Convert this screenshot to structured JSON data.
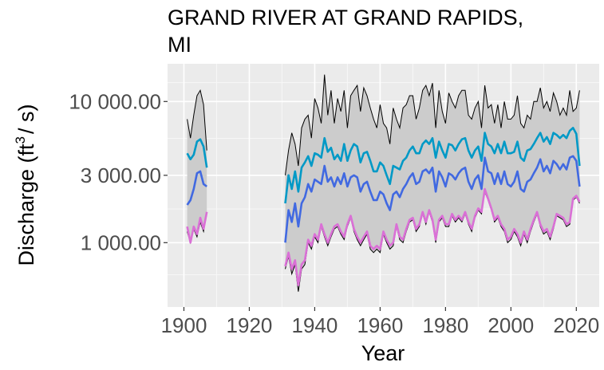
{
  "chart_data": {
    "type": "area",
    "title": "GRAND RIVER AT GRAND RAPIDS, MI",
    "title_lines": [
      "GRAND RIVER AT GRAND RAPIDS,",
      "MI"
    ],
    "xlabel": "Year",
    "ylabel": "Discharge (ft",
    "ylabel_sup": "3",
    "ylabel_tail": "/ s)",
    "x_scale": "linear",
    "y_scale": "log10",
    "xlim": [
      1895,
      2027
    ],
    "ylim": [
      350,
      18500
    ],
    "x_ticks": [
      1900,
      1920,
      1940,
      1960,
      1980,
      2000,
      2020
    ],
    "x_tick_labels": [
      "1900",
      "1920",
      "1940",
      "1960",
      "1980",
      "2000",
      "2020"
    ],
    "y_ticks": [
      1000,
      3000,
      10000
    ],
    "y_tick_labels": [
      "1 000.00",
      "3 000.00",
      "10 000.00"
    ],
    "grid": true,
    "colors": {
      "panel": "#ebebeb",
      "grid_major": "#ffffff",
      "grid_minor": "#f7f7f7",
      "ribbon_fill": "#cccccc",
      "ribbon_edge": "#000000",
      "series_upper": "#0099c6",
      "series_mid": "#4169e1",
      "series_lower": "#da70d6"
    },
    "series": [
      {
        "role": "ribbon",
        "segments": [
          {
            "x": [
              1901,
              1902,
              1903,
              1904,
              1905,
              1906,
              1907
            ],
            "low": [
              1200,
              1000,
              1250,
              1100,
              1400,
              1200,
              1600
            ],
            "high": [
              7500,
              5500,
              8000,
              11000,
              12000,
              9500,
              4500
            ]
          },
          {
            "x": [
              1931,
              1932,
              1933,
              1934,
              1935,
              1936,
              1937,
              1938,
              1939,
              1940,
              1941,
              1942,
              1943,
              1944,
              1945,
              1946,
              1947,
              1948,
              1949,
              1950,
              1951,
              1952,
              1953,
              1954,
              1955,
              1956,
              1957,
              1958,
              1959,
              1960,
              1961,
              1962,
              1963,
              1964,
              1965,
              1966,
              1967,
              1968,
              1969,
              1970,
              1971,
              1972,
              1973,
              1974,
              1975,
              1976,
              1977,
              1978,
              1979,
              1980,
              1981,
              1982,
              1983,
              1984,
              1985,
              1986,
              1987,
              1988,
              1989,
              1990,
              1991,
              1992,
              1993,
              1994,
              1995,
              1996,
              1997,
              1998,
              1999,
              2000,
              2001,
              2002,
              2003,
              2004,
              2005,
              2006,
              2007,
              2008,
              2009,
              2010,
              2011,
              2012,
              2013,
              2014,
              2015,
              2016,
              2017,
              2018,
              2019,
              2020,
              2021
            ],
            "low": [
              650,
              800,
              600,
              700,
              450,
              650,
              700,
              1000,
              900,
              1100,
              1000,
              1300,
              1100,
              950,
              1100,
              1250,
              1300,
              1150,
              1050,
              1300,
              1500,
              1200,
              1050,
              950,
              1050,
              1150,
              900,
              850,
              900,
              850,
              1150,
              1000,
              900,
              950,
              1300,
              1050,
              1000,
              1200,
              1400,
              1450,
              1200,
              1300,
              1600,
              1350,
              1650,
              1400,
              1000,
              1400,
              1500,
              1300,
              1300,
              1550,
              1400,
              1500,
              1400,
              1600,
              1350,
              1200,
              1500,
              1700,
              1600,
              2300,
              2000,
              1700,
              1400,
              1500,
              1300,
              1200,
              1000,
              1050,
              1200,
              1100,
              950,
              1150,
              1000,
              1200,
              1400,
              1600,
              1300,
              1150,
              1200,
              1050,
              1250,
              1550,
              1500,
              1450,
              1300,
              1350,
              2000,
              2100,
              1900
            ],
            "high": [
              3000,
              4500,
              6000,
              5000,
              3500,
              6500,
              7500,
              8000,
              5500,
              10500,
              9000,
              7000,
              15500,
              8000,
              12000,
              7000,
              10500,
              8500,
              12000,
              6500,
              11000,
              12000,
              13000,
              8500,
              12500,
              11000,
              9000,
              7500,
              6500,
              9500,
              7000,
              6500,
              5000,
              9000,
              7500,
              6500,
              9000,
              9500,
              11000,
              11000,
              7500,
              9000,
              12000,
              13000,
              11000,
              13500,
              6500,
              12000,
              8500,
              7000,
              11500,
              10000,
              9000,
              11000,
              12000,
              12000,
              8000,
              7500,
              9000,
              10000,
              6500,
              13000,
              9000,
              9500,
              7000,
              9500,
              6500,
              10000,
              7500,
              7500,
              8000,
              11000,
              7000,
              6500,
              8000,
              7500,
              10000,
              10000,
              12500,
              9000,
              10000,
              8500,
              11500,
              10000,
              8000,
              9000,
              8000,
              12000,
              8500,
              9000,
              12000
            ]
          }
        ]
      },
      {
        "role": "upper",
        "segments": [
          {
            "x": [
              1901,
              1902,
              1903,
              1904,
              1905,
              1906,
              1907
            ],
            "y": [
              4300,
              3900,
              4200,
              5200,
              5400,
              4800,
              3400
            ]
          },
          {
            "x": [
              1931,
              1932,
              1933,
              1934,
              1935,
              1936,
              1937,
              1938,
              1939,
              1940,
              1941,
              1942,
              1943,
              1944,
              1945,
              1946,
              1947,
              1948,
              1949,
              1950,
              1951,
              1952,
              1953,
              1954,
              1955,
              1956,
              1957,
              1958,
              1959,
              1960,
              1961,
              1962,
              1963,
              1964,
              1965,
              1966,
              1967,
              1968,
              1969,
              1970,
              1971,
              1972,
              1973,
              1974,
              1975,
              1976,
              1977,
              1978,
              1979,
              1980,
              1981,
              1982,
              1983,
              1984,
              1985,
              1986,
              1987,
              1988,
              1989,
              1990,
              1991,
              1992,
              1993,
              1994,
              1995,
              1996,
              1997,
              1998,
              1999,
              2000,
              2001,
              2002,
              2003,
              2004,
              2005,
              2006,
              2007,
              2008,
              2009,
              2010,
              2011,
              2012,
              2013,
              2014,
              2015,
              2016,
              2017,
              2018,
              2019,
              2020,
              2021
            ],
            "y": [
              1900,
              3000,
              2400,
              3200,
              2300,
              3400,
              3700,
              4100,
              3500,
              4300,
              4200,
              4000,
              5500,
              4400,
              4700,
              3900,
              4200,
              3800,
              5000,
              3800,
              4500,
              5000,
              4800,
              3700,
              4300,
              4400,
              3800,
              3200,
              3200,
              3700,
              3500,
              3000,
              2600,
              3500,
              3400,
              3300,
              3800,
              4000,
              4500,
              4800,
              4300,
              4300,
              5000,
              5300,
              5000,
              5500,
              4000,
              5200,
              4500,
              4000,
              5000,
              4900,
              4500,
              5000,
              5400,
              5500,
              4500,
              4000,
              4500,
              4800,
              3800,
              6000,
              5000,
              4800,
              4300,
              5000,
              4300,
              5200,
              4300,
              4300,
              4400,
              5200,
              4000,
              3800,
              4500,
              4600,
              5000,
              5500,
              6000,
              5200,
              5600,
              5000,
              6000,
              5800,
              5500,
              5800,
              5500,
              6200,
              6500,
              5900,
              3500
            ]
          }
        ]
      },
      {
        "role": "mid",
        "segments": [
          {
            "x": [
              1901,
              1902,
              1903,
              1904,
              1905,
              1906,
              1907
            ],
            "y": [
              1850,
              2000,
              2400,
              3100,
              3200,
              2600,
              2500
            ]
          },
          {
            "x": [
              1931,
              1932,
              1933,
              1934,
              1935,
              1936,
              1937,
              1938,
              1939,
              1940,
              1941,
              1942,
              1943,
              1944,
              1945,
              1946,
              1947,
              1948,
              1949,
              1950,
              1951,
              1952,
              1953,
              1954,
              1955,
              1956,
              1957,
              1958,
              1959,
              1960,
              1961,
              1962,
              1963,
              1964,
              1965,
              1966,
              1967,
              1968,
              1969,
              1970,
              1971,
              1972,
              1973,
              1974,
              1975,
              1976,
              1977,
              1978,
              1979,
              1980,
              1981,
              1982,
              1983,
              1984,
              1985,
              1986,
              1987,
              1988,
              1989,
              1990,
              1991,
              1992,
              1993,
              1994,
              1995,
              1996,
              1997,
              1998,
              1999,
              2000,
              2001,
              2002,
              2003,
              2004,
              2005,
              2006,
              2007,
              2008,
              2009,
              2010,
              2011,
              2012,
              2013,
              2014,
              2015,
              2016,
              2017,
              2018,
              2019,
              2020,
              2021
            ],
            "y": [
              1000,
              1700,
              1400,
              1900,
              1300,
              1900,
              2100,
              2600,
              2300,
              2800,
              2700,
              2600,
              3500,
              2700,
              2900,
              2500,
              2900,
              2600,
              3100,
              2500,
              2900,
              3000,
              2900,
              2300,
              2600,
              2700,
              2300,
              2000,
              2000,
              2300,
              2200,
              1900,
              1700,
              2200,
              2300,
              2100,
              2400,
              2600,
              2900,
              3100,
              2600,
              2700,
              3200,
              3300,
              3100,
              3400,
              2300,
              3200,
              2900,
              2500,
              3100,
              3000,
              2800,
              3100,
              3300,
              3400,
              2700,
              2400,
              2800,
              3000,
              2400,
              4000,
              3200,
              3100,
              2600,
              3100,
              2600,
              3200,
              2600,
              2500,
              2700,
              3200,
              2400,
              2300,
              2700,
              2800,
              3100,
              3400,
              3900,
              3200,
              3500,
              3100,
              3800,
              3600,
              3300,
              3600,
              3300,
              4000,
              4100,
              3800,
              2500
            ]
          }
        ]
      },
      {
        "role": "lower",
        "segments": [
          {
            "x": [
              1901,
              1902,
              1903,
              1904,
              1905,
              1906,
              1907
            ],
            "y": [
              1300,
              1000,
              1300,
              1150,
              1500,
              1250,
              1650
            ]
          },
          {
            "x": [
              1931,
              1932,
              1933,
              1934,
              1935,
              1936,
              1937,
              1938,
              1939,
              1940,
              1941,
              1942,
              1943,
              1944,
              1945,
              1946,
              1947,
              1948,
              1949,
              1950,
              1951,
              1952,
              1953,
              1954,
              1955,
              1956,
              1957,
              1958,
              1959,
              1960,
              1961,
              1962,
              1963,
              1964,
              1965,
              1966,
              1967,
              1968,
              1969,
              1970,
              1971,
              1972,
              1973,
              1974,
              1975,
              1976,
              1977,
              1978,
              1979,
              1980,
              1981,
              1982,
              1983,
              1984,
              1985,
              1986,
              1987,
              1988,
              1989,
              1990,
              1991,
              1992,
              1993,
              1994,
              1995,
              1996,
              1997,
              1998,
              1999,
              2000,
              2001,
              2002,
              2003,
              2004,
              2005,
              2006,
              2007,
              2008,
              2009,
              2010,
              2011,
              2012,
              2013,
              2014,
              2015,
              2016,
              2017,
              2018,
              2019,
              2020,
              2021
            ],
            "y": [
              680,
              850,
              650,
              750,
              500,
              700,
              750,
              1050,
              950,
              1150,
              1050,
              1350,
              1150,
              1000,
              1150,
              1300,
              1350,
              1200,
              1100,
              1350,
              1550,
              1250,
              1100,
              1000,
              1100,
              1200,
              950,
              900,
              950,
              900,
              1200,
              1050,
              950,
              1000,
              1350,
              1100,
              1050,
              1250,
              1450,
              1500,
              1250,
              1350,
              1650,
              1400,
              1700,
              1450,
              1050,
              1450,
              1550,
              1350,
              1350,
              1600,
              1450,
              1550,
              1450,
              1650,
              1400,
              1250,
              1550,
              1750,
              1650,
              2400,
              2050,
              1750,
              1450,
              1550,
              1350,
              1250,
              1050,
              1100,
              1250,
              1150,
              1000,
              1200,
              1050,
              1250,
              1450,
              1650,
              1350,
              1200,
              1250,
              1100,
              1300,
              1600,
              1550,
              1500,
              1350,
              1400,
              2050,
              2150,
              1950
            ]
          }
        ]
      }
    ]
  }
}
